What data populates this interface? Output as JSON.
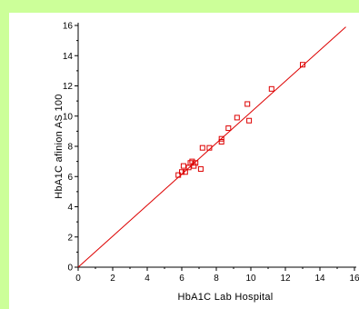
{
  "colors": {
    "frame": "#ccff99",
    "background": "#ffffff",
    "marker": "#dd0000",
    "fit_line": "#dd0000",
    "axis": "#000000"
  },
  "chart_data": {
    "type": "scatter",
    "title": "",
    "xlabel": "HbA1C Lab Hospital",
    "ylabel": "HbA1C afinion AS 100",
    "xlim": [
      0,
      16
    ],
    "ylim": [
      0,
      16
    ],
    "xticks": [
      0,
      2,
      4,
      6,
      8,
      10,
      12,
      14,
      16
    ],
    "yticks": [
      0,
      2,
      4,
      6,
      8,
      10,
      12,
      14,
      16
    ],
    "grid": false,
    "marker": "open-square",
    "series": [
      {
        "points": [
          [
            5.8,
            6.1
          ],
          [
            6.0,
            6.3
          ],
          [
            6.1,
            6.7
          ],
          [
            6.2,
            6.3
          ],
          [
            6.4,
            6.6
          ],
          [
            6.5,
            6.9
          ],
          [
            6.6,
            7.0
          ],
          [
            6.7,
            6.7
          ],
          [
            6.8,
            6.9
          ],
          [
            7.1,
            6.5
          ],
          [
            7.2,
            7.9
          ],
          [
            7.6,
            7.9
          ],
          [
            8.3,
            8.3
          ],
          [
            8.3,
            8.5
          ],
          [
            8.7,
            9.2
          ],
          [
            9.2,
            9.9
          ],
          [
            9.8,
            10.8
          ],
          [
            9.9,
            9.7
          ],
          [
            11.2,
            11.8
          ],
          [
            13.0,
            13.4
          ]
        ]
      }
    ],
    "fit_line": {
      "x": [
        0,
        15.5
      ],
      "y": [
        0,
        15.9
      ]
    }
  }
}
